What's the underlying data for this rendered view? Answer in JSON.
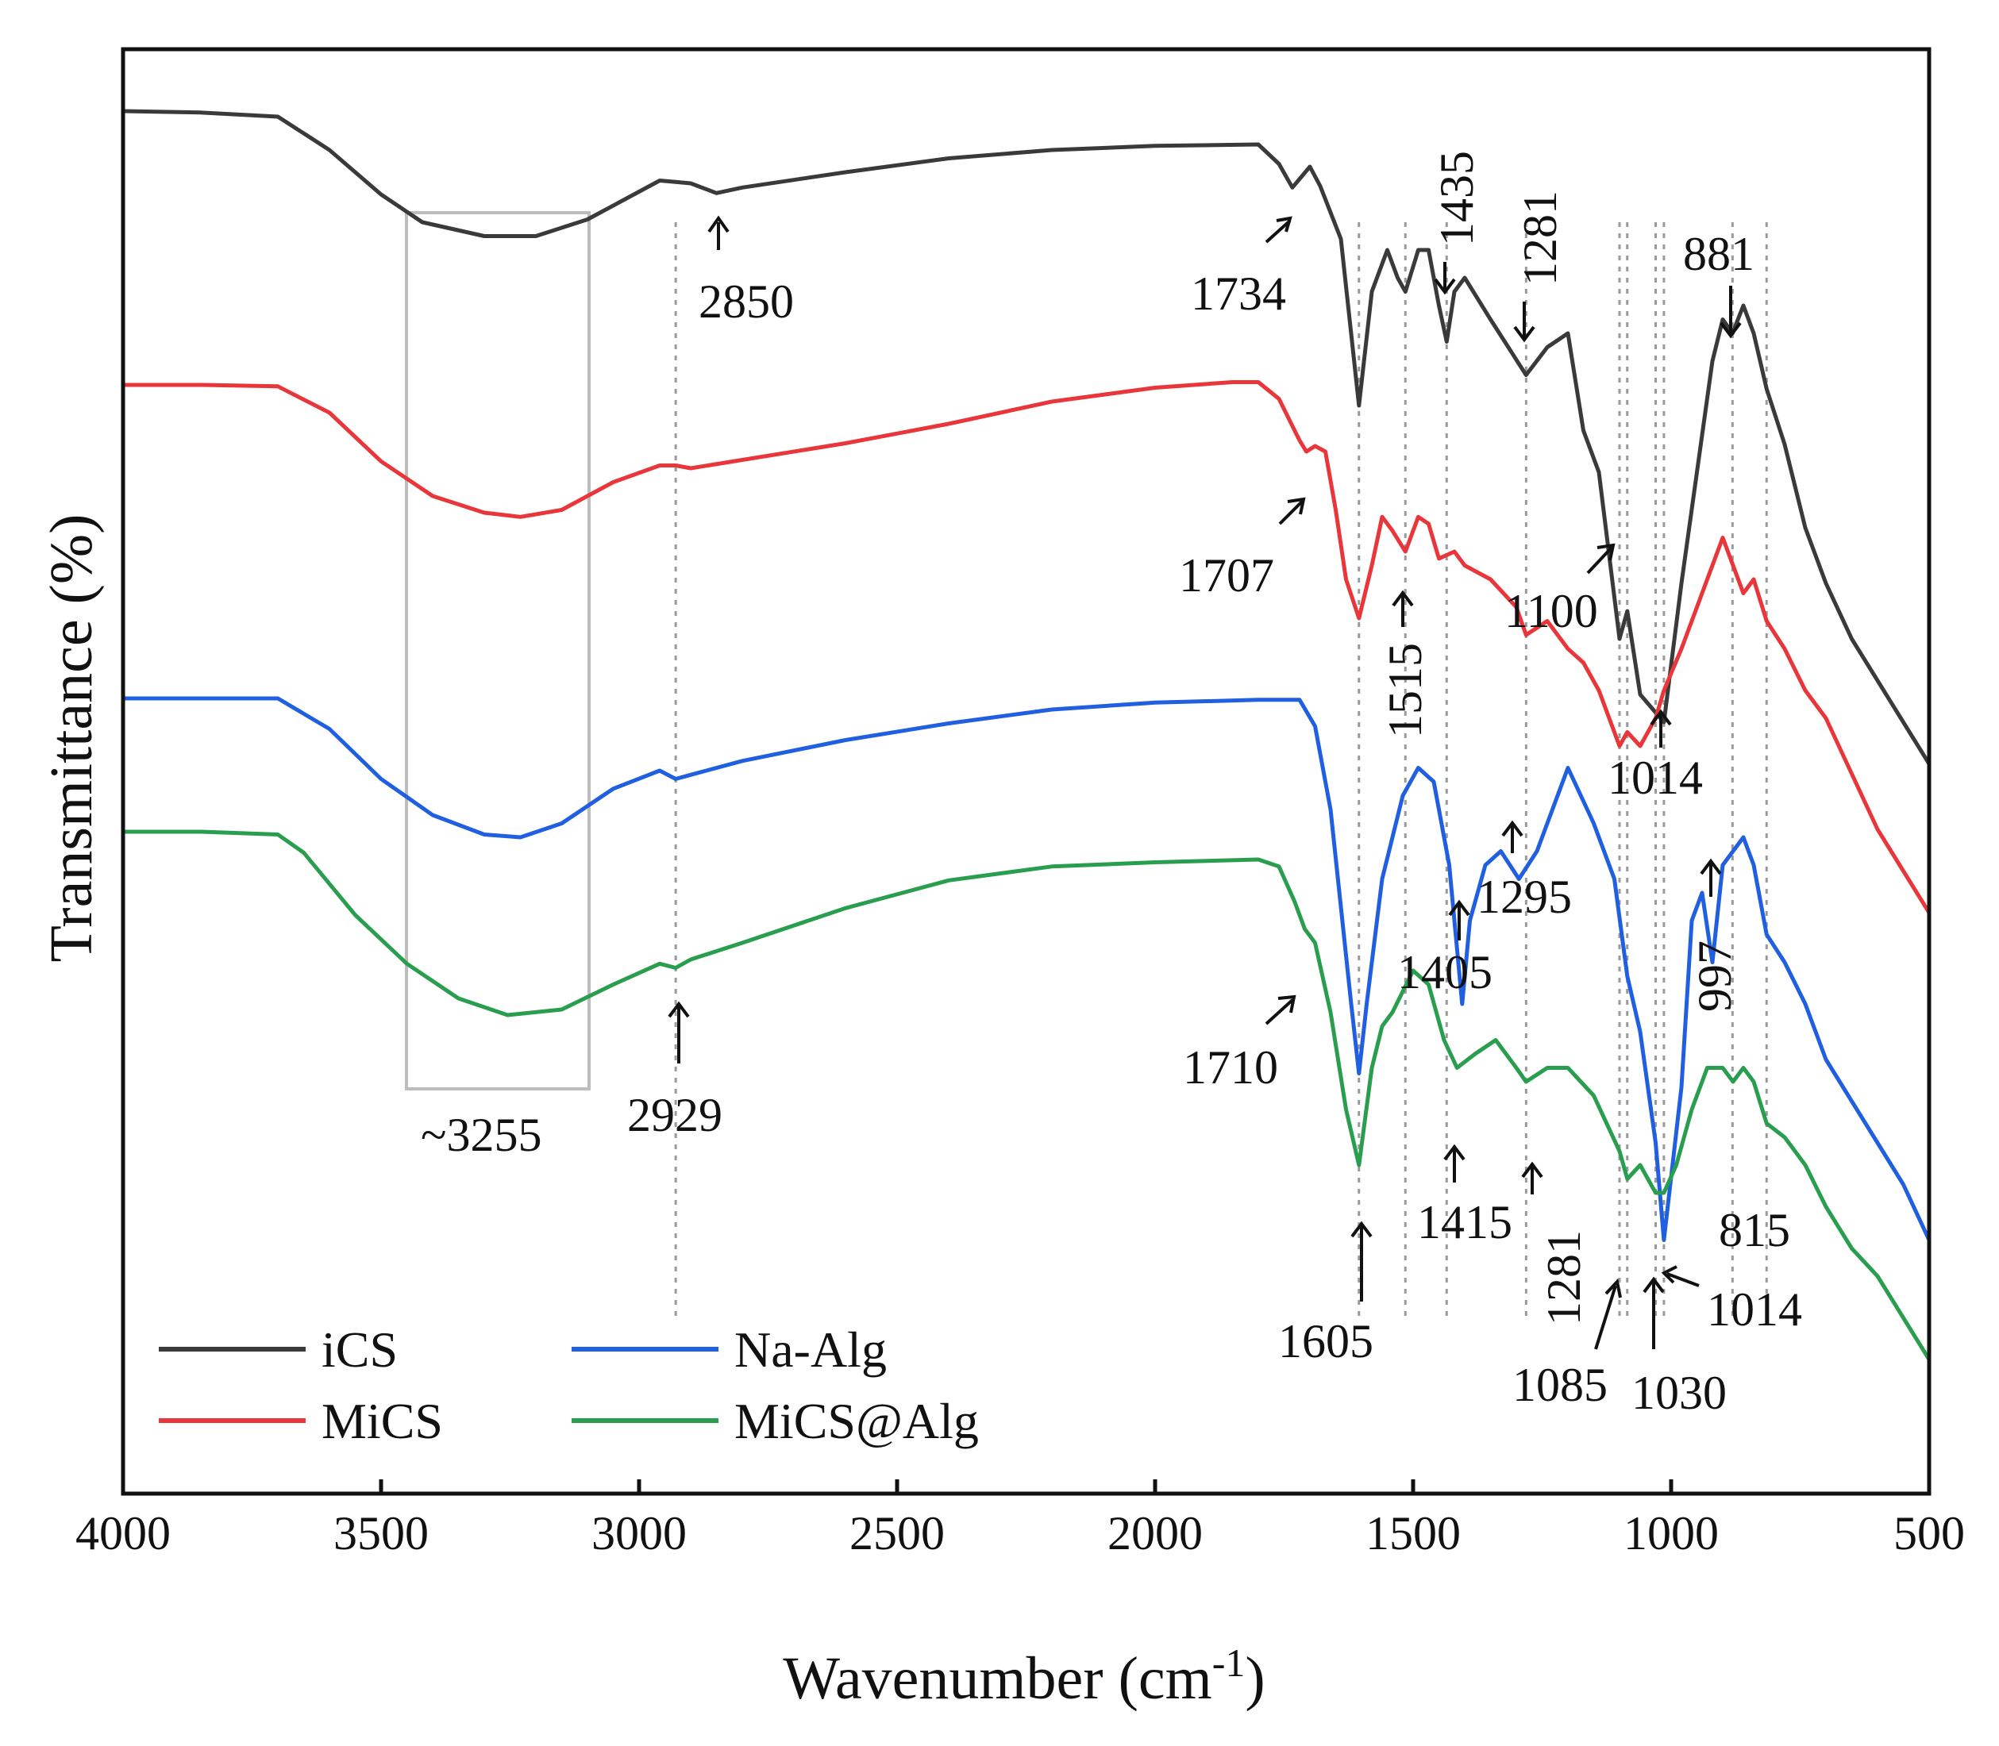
{
  "chart_data": {
    "type": "line",
    "title": "",
    "xlabel": "Wavenumber (cm",
    "xlabel_sup": "-1",
    "xlabel_end": ")",
    "ylabel": "Transmittance (%)",
    "xlim": [
      4000,
      500
    ],
    "xticks": [
      "4000",
      "3500",
      "3000",
      "2500",
      "2000",
      "1500",
      "1000",
      "500"
    ],
    "legend_placement": "bottom-left",
    "series": [
      {
        "name": "iCS",
        "color": "#3a3a3a",
        "points": [
          [
            4000,
            1.0
          ],
          [
            3850,
            0.99
          ],
          [
            3700,
            0.96
          ],
          [
            3600,
            0.72
          ],
          [
            3500,
            0.4
          ],
          [
            3420,
            0.2
          ],
          [
            3300,
            0.1
          ],
          [
            3200,
            0.1
          ],
          [
            3100,
            0.22
          ],
          [
            3000,
            0.42
          ],
          [
            2960,
            0.5
          ],
          [
            2929,
            0.49
          ],
          [
            2900,
            0.48
          ],
          [
            2850,
            0.41
          ],
          [
            2800,
            0.45
          ],
          [
            2600,
            0.56
          ],
          [
            2400,
            0.66
          ],
          [
            2200,
            0.72
          ],
          [
            2000,
            0.75
          ],
          [
            1800,
            0.76
          ],
          [
            1760,
            0.62
          ],
          [
            1734,
            0.45
          ],
          [
            1700,
            0.6
          ],
          [
            1680,
            0.46
          ],
          [
            1640,
            0.08
          ],
          [
            1605,
            -1.12
          ],
          [
            1580,
            -0.3
          ],
          [
            1550,
            0.0
          ],
          [
            1530,
            -0.2
          ],
          [
            1515,
            -0.3
          ],
          [
            1490,
            0.0
          ],
          [
            1470,
            0.0
          ],
          [
            1450,
            -0.4
          ],
          [
            1435,
            -0.66
          ],
          [
            1420,
            -0.3
          ],
          [
            1400,
            -0.2
          ],
          [
            1350,
            -0.5
          ],
          [
            1281,
            -0.9
          ],
          [
            1240,
            -0.7
          ],
          [
            1200,
            -0.6
          ],
          [
            1170,
            -1.3
          ],
          [
            1140,
            -1.6
          ],
          [
            1100,
            -2.8
          ],
          [
            1085,
            -2.6
          ],
          [
            1060,
            -3.2
          ],
          [
            1014,
            -3.4
          ],
          [
            980,
            -2.4
          ],
          [
            950,
            -1.6
          ],
          [
            920,
            -0.8
          ],
          [
            900,
            -0.5
          ],
          [
            881,
            -0.6
          ],
          [
            860,
            -0.4
          ],
          [
            840,
            -0.6
          ],
          [
            815,
            -1.0
          ],
          [
            780,
            -1.4
          ],
          [
            740,
            -2.0
          ],
          [
            700,
            -2.4
          ],
          [
            650,
            -2.8
          ],
          [
            600,
            -3.1
          ],
          [
            550,
            -3.4
          ],
          [
            500,
            -3.7
          ]
        ]
      },
      {
        "name": "MiCS",
        "color": "#e8363a",
        "points": [
          [
            4000,
            1.0
          ],
          [
            3850,
            1.0
          ],
          [
            3700,
            0.99
          ],
          [
            3600,
            0.8
          ],
          [
            3500,
            0.45
          ],
          [
            3400,
            0.2
          ],
          [
            3300,
            0.08
          ],
          [
            3230,
            0.05
          ],
          [
            3150,
            0.1
          ],
          [
            3050,
            0.3
          ],
          [
            2960,
            0.42
          ],
          [
            2929,
            0.42
          ],
          [
            2900,
            0.4
          ],
          [
            2800,
            0.46
          ],
          [
            2600,
            0.58
          ],
          [
            2400,
            0.72
          ],
          [
            2200,
            0.88
          ],
          [
            2000,
            0.98
          ],
          [
            1850,
            1.02
          ],
          [
            1800,
            1.02
          ],
          [
            1760,
            0.9
          ],
          [
            1740,
            0.75
          ],
          [
            1720,
            0.6
          ],
          [
            1707,
            0.52
          ],
          [
            1690,
            0.56
          ],
          [
            1670,
            0.52
          ],
          [
            1650,
            0.1
          ],
          [
            1630,
            -0.4
          ],
          [
            1605,
            -0.68
          ],
          [
            1580,
            -0.3
          ],
          [
            1560,
            0.05
          ],
          [
            1540,
            -0.05
          ],
          [
            1515,
            -0.2
          ],
          [
            1490,
            0.05
          ],
          [
            1470,
            0.0
          ],
          [
            1450,
            -0.25
          ],
          [
            1420,
            -0.2
          ],
          [
            1400,
            -0.3
          ],
          [
            1350,
            -0.4
          ],
          [
            1300,
            -0.6
          ],
          [
            1281,
            -0.8
          ],
          [
            1240,
            -0.7
          ],
          [
            1200,
            -0.9
          ],
          [
            1170,
            -1.0
          ],
          [
            1140,
            -1.2
          ],
          [
            1100,
            -1.6
          ],
          [
            1085,
            -1.5
          ],
          [
            1060,
            -1.6
          ],
          [
            1030,
            -1.4
          ],
          [
            1014,
            -1.2
          ],
          [
            980,
            -0.9
          ],
          [
            950,
            -0.6
          ],
          [
            920,
            -0.3
          ],
          [
            900,
            -0.1
          ],
          [
            880,
            -0.3
          ],
          [
            860,
            -0.5
          ],
          [
            840,
            -0.4
          ],
          [
            815,
            -0.7
          ],
          [
            780,
            -0.9
          ],
          [
            740,
            -1.2
          ],
          [
            700,
            -1.4
          ],
          [
            650,
            -1.8
          ],
          [
            600,
            -2.2
          ],
          [
            550,
            -2.5
          ],
          [
            500,
            -2.8
          ]
        ]
      },
      {
        "name": "Na-Alg",
        "color": "#1f5fe0",
        "points": [
          [
            4000,
            1.0
          ],
          [
            3850,
            1.0
          ],
          [
            3700,
            1.0
          ],
          [
            3600,
            0.78
          ],
          [
            3500,
            0.42
          ],
          [
            3400,
            0.16
          ],
          [
            3300,
            0.02
          ],
          [
            3230,
            0.0
          ],
          [
            3150,
            0.1
          ],
          [
            3050,
            0.35
          ],
          [
            2960,
            0.48
          ],
          [
            2929,
            0.42
          ],
          [
            2900,
            0.45
          ],
          [
            2800,
            0.55
          ],
          [
            2600,
            0.7
          ],
          [
            2400,
            0.82
          ],
          [
            2200,
            0.92
          ],
          [
            2000,
            0.97
          ],
          [
            1800,
            0.99
          ],
          [
            1720,
            0.99
          ],
          [
            1690,
            0.8
          ],
          [
            1660,
            0.2
          ],
          [
            1620,
            -1.2
          ],
          [
            1605,
            -1.7
          ],
          [
            1590,
            -1.2
          ],
          [
            1560,
            -0.3
          ],
          [
            1520,
            0.3
          ],
          [
            1490,
            0.5
          ],
          [
            1460,
            0.4
          ],
          [
            1430,
            -0.2
          ],
          [
            1405,
            -1.2
          ],
          [
            1390,
            -0.6
          ],
          [
            1360,
            -0.2
          ],
          [
            1330,
            -0.1
          ],
          [
            1295,
            -0.3
          ],
          [
            1260,
            -0.1
          ],
          [
            1200,
            0.5
          ],
          [
            1150,
            0.1
          ],
          [
            1110,
            -0.3
          ],
          [
            1085,
            -1.0
          ],
          [
            1060,
            -1.4
          ],
          [
            1030,
            -2.2
          ],
          [
            1014,
            -2.9
          ],
          [
            980,
            -1.8
          ],
          [
            960,
            -0.6
          ],
          [
            940,
            -0.4
          ],
          [
            920,
            -0.9
          ],
          [
            900,
            -0.2
          ],
          [
            880,
            -0.1
          ],
          [
            860,
            0.0
          ],
          [
            840,
            -0.2
          ],
          [
            815,
            -0.7
          ],
          [
            780,
            -0.9
          ],
          [
            740,
            -1.2
          ],
          [
            700,
            -1.6
          ],
          [
            650,
            -1.9
          ],
          [
            600,
            -2.2
          ],
          [
            550,
            -2.5
          ],
          [
            500,
            -2.9
          ]
        ]
      },
      {
        "name": "MiCS@Alg",
        "color": "#2a9e4f",
        "points": [
          [
            4000,
            1.0
          ],
          [
            3850,
            1.0
          ],
          [
            3700,
            0.98
          ],
          [
            3650,
            0.85
          ],
          [
            3550,
            0.4
          ],
          [
            3450,
            0.05
          ],
          [
            3350,
            -0.2
          ],
          [
            3255,
            -0.32
          ],
          [
            3150,
            -0.28
          ],
          [
            3050,
            -0.1
          ],
          [
            2960,
            0.05
          ],
          [
            2929,
            0.02
          ],
          [
            2900,
            0.08
          ],
          [
            2800,
            0.2
          ],
          [
            2600,
            0.45
          ],
          [
            2400,
            0.65
          ],
          [
            2200,
            0.75
          ],
          [
            2000,
            0.78
          ],
          [
            1800,
            0.8
          ],
          [
            1760,
            0.75
          ],
          [
            1730,
            0.5
          ],
          [
            1710,
            0.3
          ],
          [
            1690,
            0.2
          ],
          [
            1660,
            -0.3
          ],
          [
            1630,
            -1.0
          ],
          [
            1605,
            -1.4
          ],
          [
            1580,
            -0.7
          ],
          [
            1560,
            -0.4
          ],
          [
            1540,
            -0.3
          ],
          [
            1500,
            0.0
          ],
          [
            1470,
            -0.1
          ],
          [
            1440,
            -0.5
          ],
          [
            1415,
            -0.7
          ],
          [
            1380,
            -0.6
          ],
          [
            1340,
            -0.5
          ],
          [
            1300,
            -0.7
          ],
          [
            1281,
            -0.8
          ],
          [
            1240,
            -0.7
          ],
          [
            1200,
            -0.7
          ],
          [
            1150,
            -0.9
          ],
          [
            1100,
            -1.3
          ],
          [
            1085,
            -1.5
          ],
          [
            1060,
            -1.4
          ],
          [
            1030,
            -1.6
          ],
          [
            1014,
            -1.6
          ],
          [
            990,
            -1.4
          ],
          [
            960,
            -1.0
          ],
          [
            930,
            -0.7
          ],
          [
            900,
            -0.7
          ],
          [
            880,
            -0.8
          ],
          [
            860,
            -0.7
          ],
          [
            840,
            -0.8
          ],
          [
            815,
            -1.1
          ],
          [
            780,
            -1.2
          ],
          [
            740,
            -1.4
          ],
          [
            700,
            -1.7
          ],
          [
            650,
            -2.0
          ],
          [
            600,
            -2.2
          ],
          [
            550,
            -2.5
          ],
          [
            500,
            -2.8
          ]
        ]
      }
    ],
    "annotations": [
      {
        "text": "~3255",
        "target": "box-region"
      },
      {
        "text": "2850",
        "series": "iCS"
      },
      {
        "text": "1734",
        "series": "iCS"
      },
      {
        "text": "1435",
        "series": "iCS"
      },
      {
        "text": "1281",
        "series": "iCS"
      },
      {
        "text": "881",
        "series": "iCS"
      },
      {
        "text": "1100",
        "series": "iCS"
      },
      {
        "text": "1707",
        "series": "MiCS"
      },
      {
        "text": "1515",
        "series": "MiCS"
      },
      {
        "text": "1014",
        "series": "MiCS"
      },
      {
        "text": "1295",
        "series": "Na-Alg"
      },
      {
        "text": "1405",
        "series": "Na-Alg"
      },
      {
        "text": "997",
        "series": "Na-Alg"
      },
      {
        "text": "2929",
        "series": "MiCS@Alg"
      },
      {
        "text": "1710",
        "series": "MiCS@Alg"
      },
      {
        "text": "1415",
        "series": "MiCS@Alg"
      },
      {
        "text": "1281",
        "series": "MiCS@Alg"
      },
      {
        "text": "815",
        "series": "MiCS@Alg"
      },
      {
        "text": "1605",
        "series": "MiCS@Alg"
      },
      {
        "text": "1014",
        "series": "MiCS@Alg"
      },
      {
        "text": "1085",
        "series": "MiCS@Alg"
      },
      {
        "text": "1030",
        "series": "MiCS@Alg"
      }
    ],
    "guide_lines": [
      2929,
      1605,
      1515,
      1435,
      1281,
      1100,
      1085,
      1030,
      1014,
      881,
      815
    ]
  }
}
